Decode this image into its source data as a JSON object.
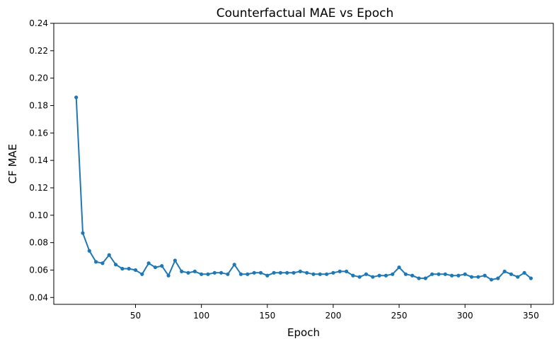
{
  "chart_data": {
    "type": "line",
    "title": "Counterfactual MAE vs Epoch",
    "xlabel": "Epoch",
    "ylabel": "CF MAE",
    "xlim": [
      -12,
      367
    ],
    "ylim": [
      0.035,
      0.24
    ],
    "xticks": [
      50,
      100,
      150,
      200,
      250,
      300,
      350
    ],
    "yticks": [
      0.04,
      0.06,
      0.08,
      0.1,
      0.12,
      0.14,
      0.16,
      0.18,
      0.2,
      0.22,
      0.24
    ],
    "grid": false,
    "legend": "none",
    "series": [
      {
        "color": "#1f77b4",
        "x": [
          5,
          10,
          15,
          20,
          25,
          30,
          35,
          40,
          45,
          50,
          55,
          60,
          65,
          70,
          75,
          80,
          85,
          90,
          95,
          100,
          105,
          110,
          115,
          120,
          125,
          130,
          135,
          140,
          145,
          150,
          155,
          160,
          165,
          170,
          175,
          180,
          185,
          190,
          195,
          200,
          205,
          210,
          215,
          220,
          225,
          230,
          235,
          240,
          245,
          250,
          255,
          260,
          265,
          270,
          275,
          280,
          285,
          290,
          295,
          300,
          305,
          310,
          315,
          320,
          325,
          330,
          335,
          340,
          345,
          350
        ],
        "y": [
          0.186,
          0.087,
          0.074,
          0.066,
          0.065,
          0.071,
          0.064,
          0.061,
          0.061,
          0.06,
          0.057,
          0.065,
          0.062,
          0.063,
          0.056,
          0.067,
          0.059,
          0.058,
          0.059,
          0.057,
          0.057,
          0.058,
          0.058,
          0.057,
          0.064,
          0.057,
          0.057,
          0.058,
          0.058,
          0.056,
          0.058,
          0.058,
          0.058,
          0.058,
          0.059,
          0.058,
          0.057,
          0.057,
          0.057,
          0.058,
          0.059,
          0.059,
          0.056,
          0.055,
          0.057,
          0.055,
          0.056,
          0.056,
          0.057,
          0.062,
          0.057,
          0.056,
          0.054,
          0.054,
          0.057,
          0.057,
          0.057,
          0.056,
          0.056,
          0.057,
          0.055,
          0.055,
          0.056,
          0.053,
          0.054,
          0.059,
          0.057,
          0.055,
          0.058,
          0.054
        ]
      }
    ]
  }
}
